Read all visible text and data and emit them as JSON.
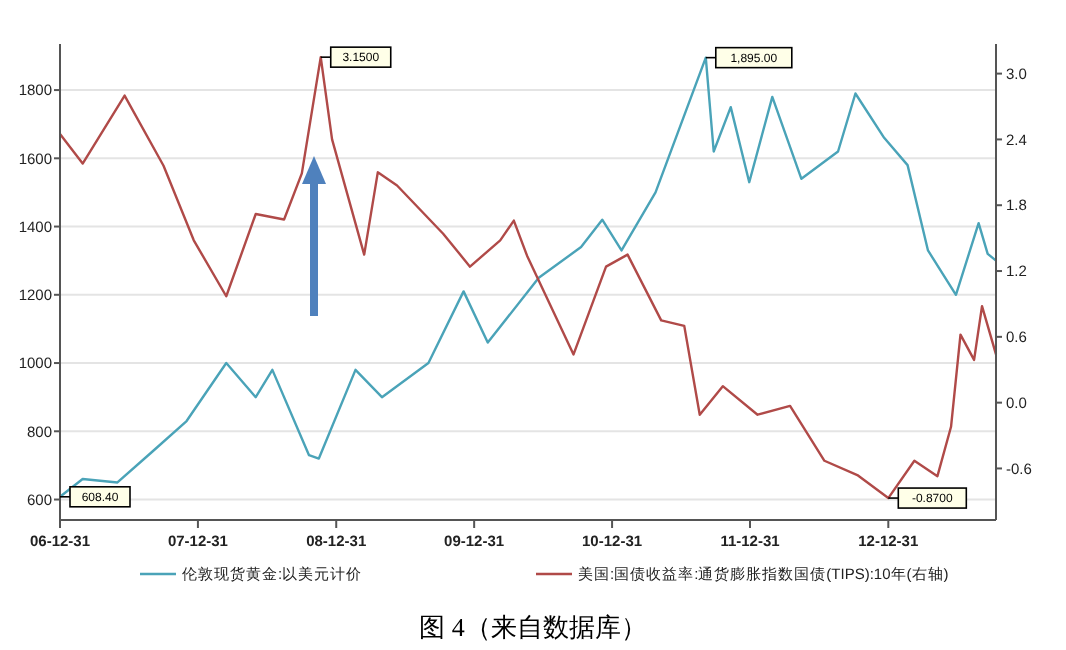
{
  "chart_data": {
    "type": "line",
    "title": "图 4（来自数据库）",
    "xlim": [
      "2006-12-31",
      "2013-10-12"
    ],
    "xticks": [
      {
        "value": "2006-12-31",
        "label": "06-12-31"
      },
      {
        "value": "2007-12-31",
        "label": "07-12-31"
      },
      {
        "value": "2008-12-31",
        "label": "08-12-31"
      },
      {
        "value": "2009-12-31",
        "label": "09-12-31"
      },
      {
        "value": "2010-12-31",
        "label": "10-12-31"
      },
      {
        "value": "2011-12-31",
        "label": "11-12-31"
      },
      {
        "value": "2012-12-31",
        "label": "12-12-31"
      }
    ],
    "ylim": [
      540,
      1935
    ],
    "yticks": [
      600,
      800,
      1000,
      1200,
      1400,
      1600,
      1800
    ],
    "y2lim": [
      -1.07,
      3.27
    ],
    "y2ticks": [
      {
        "value": -0.6,
        "label": "-0.6"
      },
      {
        "value": 0,
        "label": "0.0"
      },
      {
        "value": 0.6,
        "label": "0.6"
      },
      {
        "value": 1.2,
        "label": "1.2"
      },
      {
        "value": 1.8,
        "label": "1.8"
      },
      {
        "value": 2.4,
        "label": "2.4"
      },
      {
        "value": 3,
        "label": "3.0"
      }
    ],
    "grid": "y",
    "legend": "bottom",
    "line_style": "solid",
    "marker": "none",
    "series": [
      {
        "name": "伦敦现货黄金:以美元计价",
        "color": "#4aa3b8",
        "x": [
          "2006-12-31",
          "2007-03-01",
          "2007-06-01",
          "2007-09-01",
          "2007-12-01",
          "2008-03-15",
          "2008-06-01",
          "2008-07-15",
          "2008-10-20",
          "2008-11-15",
          "2009-02-20",
          "2009-05-01",
          "2009-09-01",
          "2009-12-03",
          "2010-02-05",
          "2010-06-20",
          "2010-10-10",
          "2010-12-05",
          "2011-01-25",
          "2011-04-25",
          "2011-09-05",
          "2011-09-26",
          "2011-11-10",
          "2011-12-29",
          "2012-02-28",
          "2012-05-15",
          "2012-08-20",
          "2012-10-05",
          "2012-12-20",
          "2013-02-20",
          "2013-04-15",
          "2013-06-28",
          "2013-08-27",
          "2013-09-20",
          "2013-10-12"
        ],
        "values": [
          608,
          660,
          650,
          740,
          830,
          1000,
          900,
          980,
          730,
          720,
          980,
          900,
          1000,
          1210,
          1060,
          1250,
          1340,
          1420,
          1330,
          1500,
          1895,
          1620,
          1750,
          1530,
          1780,
          1540,
          1620,
          1790,
          1660,
          1580,
          1330,
          1200,
          1410,
          1320,
          1300
        ]
      },
      {
        "name": "美国:国债收益率:通货膨胀指数国债(TIPS):10年(右轴)",
        "color": "#b04a48",
        "axis": "y2",
        "x": [
          "2006-12-31",
          "2007-03-01",
          "2007-06-20",
          "2007-10-01",
          "2007-12-20",
          "2008-03-15",
          "2008-06-01",
          "2008-08-15",
          "2008-10-01",
          "2008-11-20",
          "2008-12-20",
          "2009-03-15",
          "2009-04-20",
          "2009-06-10",
          "2009-10-10",
          "2009-12-20",
          "2010-03-10",
          "2010-04-15",
          "2010-05-20",
          "2010-09-20",
          "2010-12-15",
          "2011-02-10",
          "2011-05-10",
          "2011-07-10",
          "2011-08-20",
          "2011-10-20",
          "2012-01-20",
          "2012-04-15",
          "2012-07-15",
          "2012-10-10",
          "2012-12-31",
          "2013-03-10",
          "2013-05-10",
          "2013-06-15",
          "2013-07-10",
          "2013-08-15",
          "2013-09-05",
          "2013-10-12"
        ],
        "values": [
          2.45,
          2.18,
          2.8,
          2.16,
          1.48,
          0.97,
          1.72,
          1.67,
          2.09,
          3.15,
          2.4,
          1.35,
          2.1,
          1.98,
          1.54,
          1.24,
          1.48,
          1.66,
          1.34,
          0.44,
          1.24,
          1.35,
          0.75,
          0.7,
          -0.11,
          0.15,
          -0.11,
          -0.03,
          -0.53,
          -0.66,
          -0.87,
          -0.53,
          -0.67,
          -0.22,
          0.62,
          0.39,
          0.88,
          0.44
        ]
      }
    ],
    "annotations": [
      {
        "text": "608.40",
        "x": "2006-12-31",
        "y": 608
      },
      "3.1500",
      {
        "text": "1,895.00",
        "x": "2011-09-05",
        "y": 1895
      },
      "-0.8700"
    ]
  }
}
